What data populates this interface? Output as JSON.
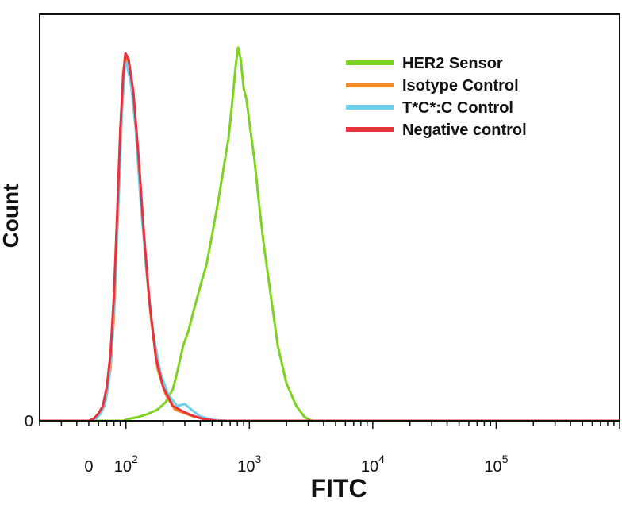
{
  "chart_data": {
    "type": "line",
    "title": "",
    "xlabel": "FITC",
    "ylabel": "Count",
    "x_scale": "log",
    "x_range": [
      20,
      1000000
    ],
    "y_range": [
      0,
      1.0
    ],
    "y_tick_label": "0",
    "x_ticks": [
      {
        "value": 50,
        "base": "0",
        "exp": ""
      },
      {
        "value": 100,
        "base": "10",
        "exp": "2"
      },
      {
        "value": 1000,
        "base": "10",
        "exp": "3"
      },
      {
        "value": 10000,
        "base": "10",
        "exp": "4"
      },
      {
        "value": 100000,
        "base": "10",
        "exp": "5"
      }
    ],
    "legend_position": "top-right",
    "series": [
      {
        "name": "HER2 Sensor",
        "color": "#7ed321",
        "points": [
          [
            20,
            0
          ],
          [
            95,
            0
          ],
          [
            105,
            0.005
          ],
          [
            125,
            0.01
          ],
          [
            150,
            0.018
          ],
          [
            180,
            0.03
          ],
          [
            210,
            0.05
          ],
          [
            240,
            0.085
          ],
          [
            260,
            0.13
          ],
          [
            290,
            0.2
          ],
          [
            320,
            0.24
          ],
          [
            350,
            0.29
          ],
          [
            400,
            0.36
          ],
          [
            450,
            0.42
          ],
          [
            500,
            0.5
          ],
          [
            560,
            0.59
          ],
          [
            620,
            0.68
          ],
          [
            680,
            0.76
          ],
          [
            730,
            0.86
          ],
          [
            780,
            0.96
          ],
          [
            810,
            1.0
          ],
          [
            850,
            0.97
          ],
          [
            900,
            0.89
          ],
          [
            950,
            0.86
          ],
          [
            1000,
            0.8
          ],
          [
            1100,
            0.7
          ],
          [
            1200,
            0.58
          ],
          [
            1300,
            0.48
          ],
          [
            1500,
            0.33
          ],
          [
            1700,
            0.2
          ],
          [
            2000,
            0.1
          ],
          [
            2400,
            0.04
          ],
          [
            2800,
            0.01
          ],
          [
            3200,
            0.0
          ],
          [
            1000000,
            0.0
          ]
        ]
      },
      {
        "name": "Isotype Control",
        "color": "#f28c28",
        "points": [
          [
            20,
            0
          ],
          [
            50,
            0
          ],
          [
            55,
            0.005
          ],
          [
            60,
            0.015
          ],
          [
            65,
            0.03
          ],
          [
            70,
            0.07
          ],
          [
            75,
            0.14
          ],
          [
            80,
            0.28
          ],
          [
            85,
            0.5
          ],
          [
            90,
            0.75
          ],
          [
            95,
            0.92
          ],
          [
            100,
            0.98
          ],
          [
            108,
            0.94
          ],
          [
            118,
            0.82
          ],
          [
            130,
            0.62
          ],
          [
            145,
            0.42
          ],
          [
            160,
            0.27
          ],
          [
            180,
            0.14
          ],
          [
            210,
            0.07
          ],
          [
            250,
            0.03
          ],
          [
            300,
            0.02
          ],
          [
            350,
            0.012
          ],
          [
            450,
            0.004
          ],
          [
            600,
            0.0
          ],
          [
            1000000,
            0.0
          ]
        ]
      },
      {
        "name": "T*C*:C Control",
        "color": "#6fd0ec",
        "points": [
          [
            20,
            0
          ],
          [
            52,
            0
          ],
          [
            57,
            0.005
          ],
          [
            62,
            0.018
          ],
          [
            67,
            0.04
          ],
          [
            72,
            0.09
          ],
          [
            77,
            0.2
          ],
          [
            82,
            0.38
          ],
          [
            88,
            0.62
          ],
          [
            93,
            0.83
          ],
          [
            98,
            0.95
          ],
          [
            101,
            0.96
          ],
          [
            110,
            0.9
          ],
          [
            120,
            0.78
          ],
          [
            132,
            0.58
          ],
          [
            147,
            0.4
          ],
          [
            165,
            0.24
          ],
          [
            190,
            0.13
          ],
          [
            220,
            0.07
          ],
          [
            260,
            0.04
          ],
          [
            300,
            0.045
          ],
          [
            340,
            0.03
          ],
          [
            400,
            0.012
          ],
          [
            500,
            0.003
          ],
          [
            650,
            0.0
          ],
          [
            1000000,
            0.0
          ]
        ]
      },
      {
        "name": "Negative control",
        "color": "#e8323c",
        "points": [
          [
            20,
            0
          ],
          [
            50,
            0
          ],
          [
            55,
            0.006
          ],
          [
            60,
            0.02
          ],
          [
            65,
            0.04
          ],
          [
            70,
            0.09
          ],
          [
            75,
            0.18
          ],
          [
            80,
            0.34
          ],
          [
            85,
            0.56
          ],
          [
            90,
            0.78
          ],
          [
            95,
            0.93
          ],
          [
            99,
            0.985
          ],
          [
            105,
            0.97
          ],
          [
            115,
            0.88
          ],
          [
            127,
            0.7
          ],
          [
            140,
            0.5
          ],
          [
            155,
            0.32
          ],
          [
            175,
            0.17
          ],
          [
            200,
            0.09
          ],
          [
            240,
            0.04
          ],
          [
            290,
            0.025
          ],
          [
            340,
            0.015
          ],
          [
            420,
            0.005
          ],
          [
            550,
            0.0
          ],
          [
            1000000,
            0.0
          ]
        ]
      }
    ]
  }
}
